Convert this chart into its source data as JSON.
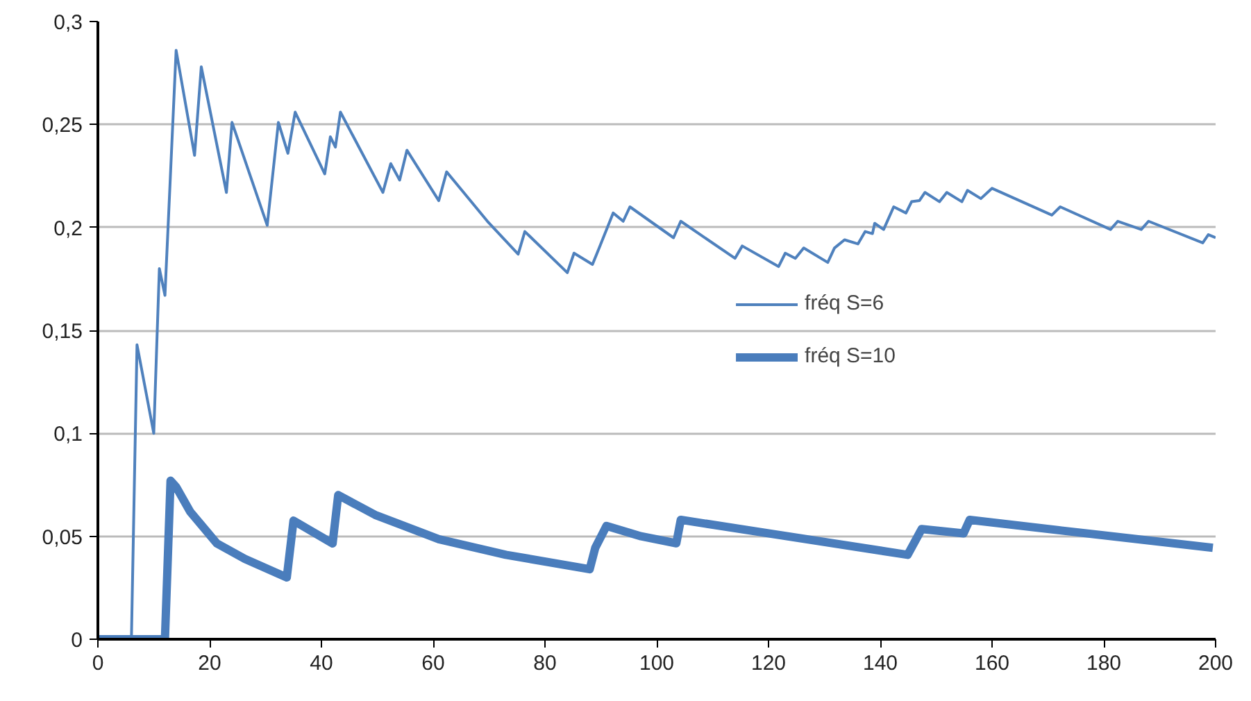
{
  "chart_data": {
    "type": "line",
    "xlim": [
      0,
      200
    ],
    "xticks": [
      0,
      20,
      40,
      60,
      80,
      100,
      120,
      140,
      160,
      180,
      200
    ],
    "ylim": [
      0,
      0.3
    ],
    "yticks": [
      {
        "value": 0,
        "label": "0"
      },
      {
        "value": 0.05,
        "label": "0,05"
      },
      {
        "value": 0.1,
        "label": "0,1"
      },
      {
        "value": 0.15,
        "label": "0,15"
      },
      {
        "value": 0.2,
        "label": "0,2"
      },
      {
        "value": 0.25,
        "label": "0,25"
      },
      {
        "value": 0.3,
        "label": "0,3"
      }
    ],
    "grid": "y",
    "legend": "right",
    "line_style": "solid",
    "series": [
      {
        "name": "fréq S=6",
        "color": "#4f81bd",
        "x": [
          0,
          6,
          7,
          10,
          11,
          12,
          14,
          17.3,
          18.5,
          23,
          24,
          30.3,
          32.3,
          34,
          35.3,
          40.6,
          41.6,
          42.5,
          43.4,
          51,
          52.4,
          54,
          55.3,
          61,
          62.4,
          69.7,
          75.2,
          76.4,
          84,
          85.2,
          88.5,
          89.7,
          92.2,
          94,
          95.2,
          103,
          104.3,
          114,
          115.3,
          121.8,
          123,
          124.8,
          126.3,
          130.6,
          131.8,
          133.6,
          136,
          137.3,
          138.6,
          139,
          140.6,
          142.4,
          144.6,
          145.6,
          147,
          148,
          150.6,
          151.9,
          154.6,
          155.6,
          158,
          160,
          170.7,
          172.2,
          181.2,
          182.5,
          186.7,
          188,
          197.7,
          198.7,
          200
        ],
        "values": [
          0,
          0,
          0.143,
          0.1,
          0.18,
          0.167,
          0.286,
          0.235,
          0.278,
          0.217,
          0.251,
          0.201,
          0.251,
          0.236,
          0.256,
          0.226,
          0.244,
          0.239,
          0.256,
          0.217,
          0.231,
          0.223,
          0.2375,
          0.213,
          0.227,
          0.203,
          0.187,
          0.198,
          0.178,
          0.1875,
          0.182,
          0.19,
          0.207,
          0.203,
          0.21,
          0.195,
          0.203,
          0.185,
          0.191,
          0.181,
          0.1875,
          0.185,
          0.19,
          0.183,
          0.19,
          0.194,
          0.192,
          0.198,
          0.197,
          0.202,
          0.199,
          0.21,
          0.207,
          0.2125,
          0.213,
          0.217,
          0.2125,
          0.217,
          0.2125,
          0.218,
          0.214,
          0.219,
          0.206,
          0.21,
          0.199,
          0.203,
          0.199,
          0.203,
          0.1925,
          0.1965,
          0.195
        ]
      },
      {
        "name": "fréq S=10",
        "color": "#4a7dbc",
        "x": [
          0,
          12,
          13,
          14,
          16.5,
          21.3,
          26.3,
          33.8,
          35,
          42,
          43,
          49.6,
          61,
          73,
          88,
          89,
          91,
          97.2,
          103.5,
          104.3,
          144.9,
          147.4,
          154.9,
          156,
          172.4,
          199.5
        ],
        "values": [
          0,
          0,
          0.077,
          0.074,
          0.062,
          0.0465,
          0.039,
          0.03,
          0.0576,
          0.0465,
          0.07,
          0.0604,
          0.0486,
          0.041,
          0.034,
          0.0444,
          0.055,
          0.05,
          0.0466,
          0.058,
          0.041,
          0.0535,
          0.0514,
          0.058,
          0.0528,
          0.0444
        ]
      }
    ]
  }
}
